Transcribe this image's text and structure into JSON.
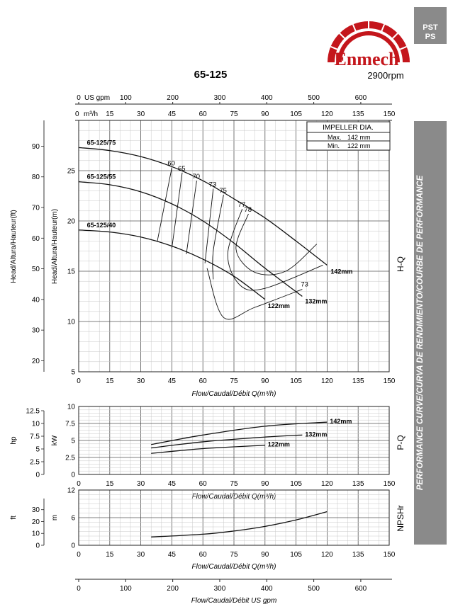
{
  "header": {
    "logo_text": "Enmech",
    "brand_code_1": "PST",
    "brand_code_2": "PS",
    "model": "65-125",
    "speed": "2900rpm"
  },
  "side_banner": "PERFORMANCE CURVE/CURVA DE RENDIMIENTO/COURBE DE PERFORMANCE",
  "section_labels": {
    "hq": "H-Q",
    "pq": "P-Q",
    "npsh": "NPSHr"
  },
  "chart_data": [
    {
      "type": "line",
      "name": "H-Q",
      "xlabel": "Flow/Caudal/Débit Q(m³/h)",
      "ylabel_left": "Head/Altura/Hauteur(ft)",
      "ylabel_right": "Head/Altura/Hauteur(m)",
      "top_axis_gpm_label": "US gpm",
      "top_axis_m3h_label": "m³/h",
      "xlim": [
        0,
        150
      ],
      "ylim": [
        5,
        30
      ],
      "x_ticks": [
        "0",
        "15",
        "30",
        "45",
        "60",
        "75",
        "90",
        "105",
        "120",
        "135",
        "150"
      ],
      "gpm_ticks": [
        "0",
        "100",
        "200",
        "300",
        "400",
        "500",
        "600"
      ],
      "m_ticks": [
        "5",
        "10",
        "15",
        "20",
        "25"
      ],
      "ft_ticks": [
        "20",
        "30",
        "40",
        "50",
        "60",
        "70",
        "80",
        "90"
      ],
      "impeller_table": {
        "title": "IMPELLER DIA.",
        "max_label": "Max.",
        "max_value": "142 mm",
        "min_label": "Min.",
        "min_value": "122 mm"
      },
      "series": [
        {
          "name": "142mm",
          "label": "65-125/75",
          "x": [
            0,
            15,
            30,
            45,
            60,
            75,
            90,
            105,
            120
          ],
          "y": [
            27.3,
            27.0,
            26.4,
            25.4,
            24.0,
            22.2,
            20.3,
            18.0,
            15.6
          ]
        },
        {
          "name": "132mm",
          "label": "65-125/55",
          "x": [
            0,
            15,
            30,
            45,
            60,
            75,
            90,
            108
          ],
          "y": [
            23.9,
            23.6,
            22.9,
            21.7,
            20.0,
            17.8,
            15.3,
            12.5
          ]
        },
        {
          "name": "122mm",
          "label": "65-125/40",
          "x": [
            0,
            15,
            30,
            45,
            60,
            75,
            90
          ],
          "y": [
            19.1,
            18.9,
            18.4,
            17.5,
            16.2,
            14.5,
            12.2
          ]
        }
      ],
      "efficiency_labels": [
        "60",
        "65",
        "70",
        "73",
        "75",
        "77",
        "78",
        "73"
      ],
      "efficiency_curves": [
        {
          "label": "60",
          "x": [
            45,
            38
          ],
          "y": [
            25.3,
            18.0
          ]
        },
        {
          "label": "65",
          "x": [
            50,
            45
          ],
          "y": [
            24.8,
            17.3
          ]
        },
        {
          "label": "70",
          "x": [
            57,
            52
          ],
          "y": [
            24.0,
            16.7
          ]
        },
        {
          "label": "73",
          "x": [
            65,
            61
          ],
          "y": [
            23.2,
            15.8
          ]
        },
        {
          "label": "75",
          "x": [
            70,
            65,
            65
          ],
          "y": [
            22.6,
            17.0,
            14.2
          ]
        },
        {
          "label": "77",
          "x": [
            79,
            72,
            78,
            90,
            118
          ],
          "y": [
            21.2,
            16.7,
            13.6,
            13.3,
            15.6
          ]
        },
        {
          "label": "78",
          "x": [
            82,
            76,
            85,
            100,
            115
          ],
          "y": [
            20.7,
            17.2,
            14.9,
            15.0,
            17.7
          ]
        }
      ],
      "bep_curve_73": {
        "label": "73",
        "x": [
          62,
          70,
          85,
          108
        ],
        "y": [
          15.3,
          10.4,
          11.4,
          13.2
        ]
      },
      "legend": "inline"
    },
    {
      "type": "line",
      "name": "P-Q",
      "xlabel": "Flow/Caudal/Débit Q(m³/h)",
      "ylabel_left": "hp",
      "ylabel_right": "kW",
      "xlim": [
        0,
        150
      ],
      "ylim": [
        0,
        10
      ],
      "x_ticks": [
        "0",
        "15",
        "30",
        "45",
        "60",
        "75",
        "90",
        "105",
        "120",
        "135",
        "150"
      ],
      "kw_ticks": [
        "0",
        "2.5",
        "5",
        "7.5",
        "10"
      ],
      "hp_ticks": [
        "0",
        "2.5",
        "5",
        "7.5",
        "10",
        "12.5"
      ],
      "series": [
        {
          "name": "142mm",
          "x": [
            35,
            60,
            90,
            120
          ],
          "y": [
            4.4,
            5.8,
            7.1,
            7.7
          ]
        },
        {
          "name": "132mm",
          "x": [
            35,
            60,
            90,
            108
          ],
          "y": [
            3.9,
            4.8,
            5.5,
            5.8
          ]
        },
        {
          "name": "122mm",
          "x": [
            35,
            60,
            90
          ],
          "y": [
            3.1,
            3.8,
            4.3
          ]
        }
      ]
    },
    {
      "type": "line",
      "name": "NPSHr",
      "xlabel": "Flow/Caudal/Débit Q(m³/h)",
      "ylabel_left": "ft",
      "ylabel_right": "m",
      "xlim": [
        0,
        150
      ],
      "ylim": [
        0,
        12
      ],
      "x_ticks": [
        "0",
        "15",
        "30",
        "45",
        "60",
        "75",
        "90",
        "105",
        "120",
        "135",
        "150"
      ],
      "m_ticks": [
        "0",
        "6",
        "12"
      ],
      "ft_ticks": [
        "0",
        "10",
        "20",
        "30"
      ],
      "series": [
        {
          "name": "NPSHr",
          "x": [
            35,
            60,
            75,
            90,
            105,
            120
          ],
          "y": [
            1.8,
            2.4,
            3.1,
            4.1,
            5.5,
            7.3
          ]
        }
      ]
    }
  ],
  "bottom_axis": {
    "label": "Flow/Caudal/Débit  US gpm",
    "ticks": [
      "0",
      "100",
      "200",
      "300",
      "400",
      "500",
      "600"
    ]
  }
}
